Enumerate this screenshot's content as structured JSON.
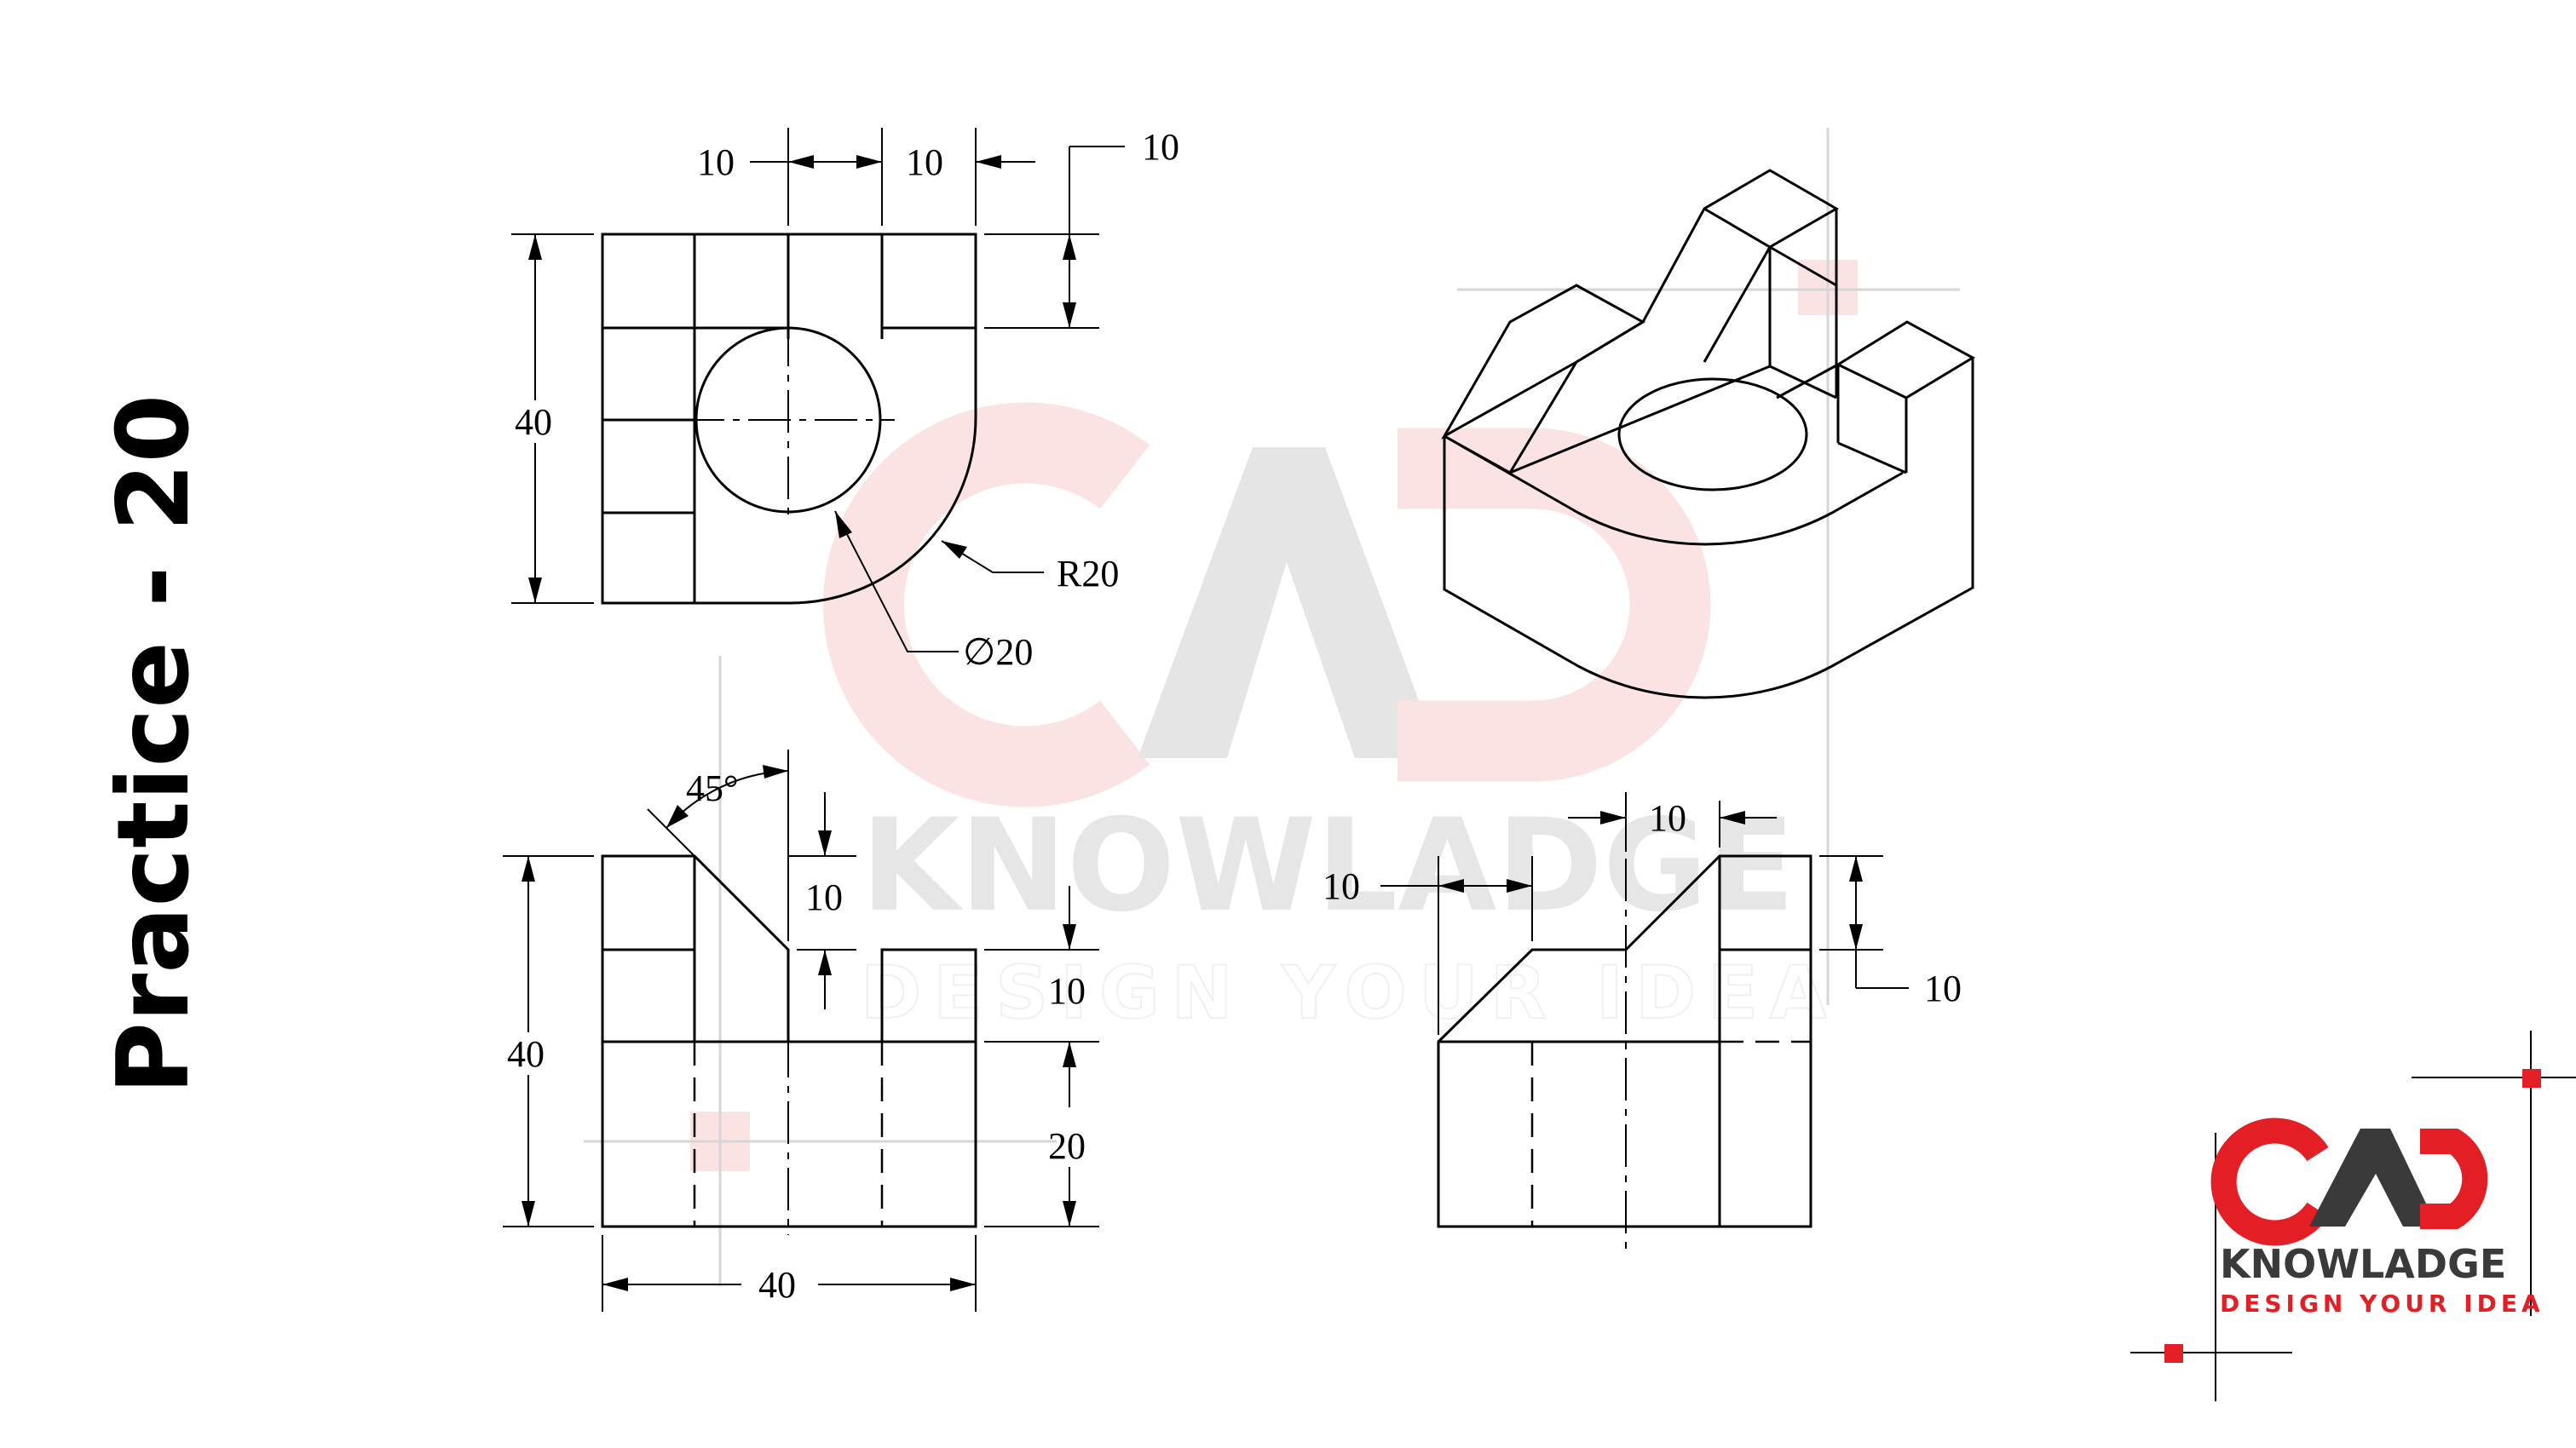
{
  "title": "Practice - 20",
  "watermark": {
    "brand": "CAD",
    "name": "KNOWLADGE",
    "tagline": "DESIGN YOUR IDEA"
  },
  "logo": {
    "brand": "CAD",
    "name": "KNOWLADGE",
    "tagline": "DESIGN YOUR IDEA",
    "colors": {
      "red": "#e31e24",
      "dark": "#3a3a3a"
    }
  },
  "top_view": {
    "dims": {
      "top_width_1": "10",
      "top_width_2": "10",
      "notch_depth": "10",
      "height": "40",
      "radius": "R20",
      "diameter": "∅20"
    }
  },
  "front_view": {
    "dims": {
      "angle": "45°",
      "chamfer_depth": "10",
      "step_height": "10",
      "base_height": "20",
      "height": "40",
      "width": "40"
    }
  },
  "side_view": {
    "dims": {
      "top_width": "10",
      "offset": "10",
      "step_height": "10"
    }
  }
}
